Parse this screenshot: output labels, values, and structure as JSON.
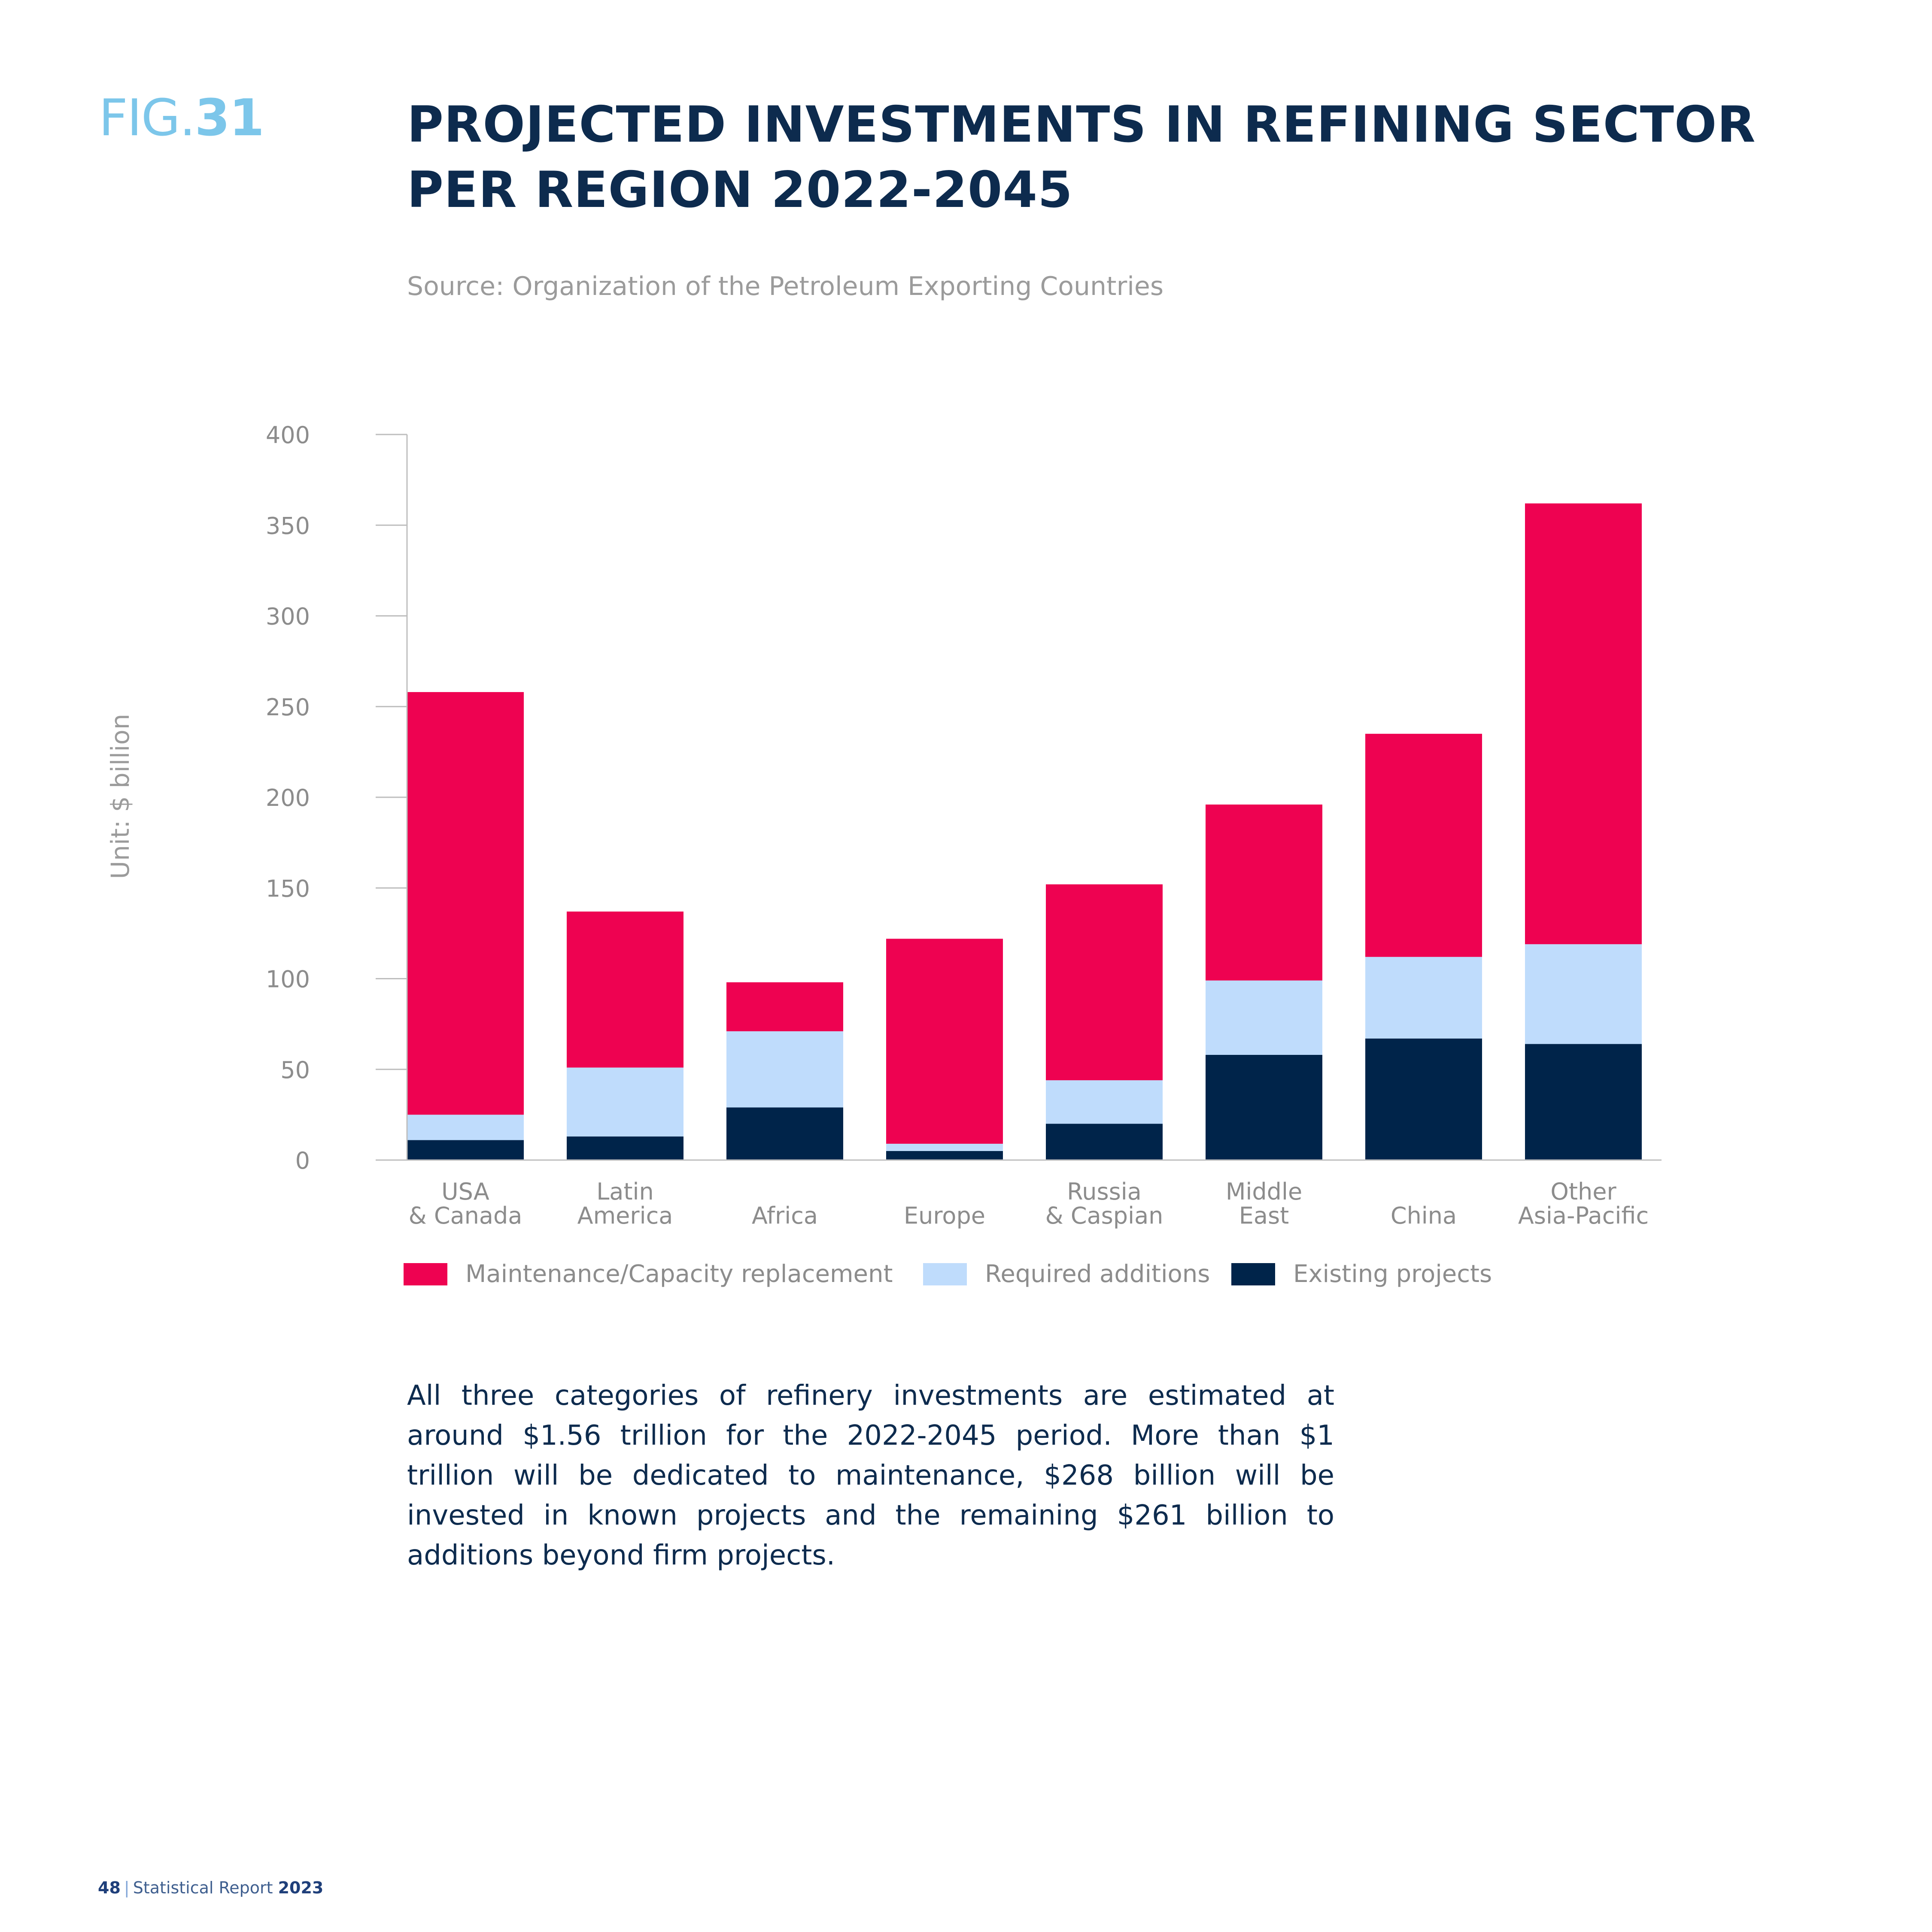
{
  "figure": {
    "prefix": "FIG.",
    "number": "31"
  },
  "title": {
    "line1": "PROJECTED INVESTMENTS IN REFINING SECTOR",
    "line2": "PER REGION 2022-2045"
  },
  "source": "Source: Organization of the Petroleum Exporting Countries",
  "unit_label": "Unit: $ billion",
  "colors": {
    "maintenance": "#ee0251",
    "required": "#bfdcfc",
    "existing": "#00244a",
    "axis": "#bdbdbd",
    "tick_text": "#8c8c8c",
    "title": "#0d2b4e"
  },
  "chart_data": {
    "type": "bar",
    "stacked": true,
    "categories": [
      [
        "USA",
        "& Canada"
      ],
      [
        "Latin",
        "America"
      ],
      [
        "Africa"
      ],
      [
        "Europe"
      ],
      [
        "Russia",
        "& Caspian"
      ],
      [
        "Middle",
        "East"
      ],
      [
        "China"
      ],
      [
        "Other",
        "Asia-Pacific"
      ]
    ],
    "series": [
      {
        "name": "Existing projects",
        "color": "#00244a",
        "values": [
          11,
          13,
          29,
          5,
          20,
          58,
          67,
          64
        ]
      },
      {
        "name": "Required additions",
        "color": "#bfdcfc",
        "values": [
          14,
          38,
          42,
          4,
          24,
          41,
          45,
          55
        ]
      },
      {
        "name": "Maintenance/Capacity replacement",
        "color": "#ee0251",
        "values": [
          233,
          86,
          27,
          113,
          108,
          97,
          123,
          243
        ]
      }
    ],
    "ylim": [
      0,
      400
    ],
    "yticks": [
      0,
      50,
      100,
      150,
      200,
      250,
      300,
      350,
      400
    ],
    "ylabel": "Unit: $ billion",
    "legend_position": "bottom",
    "grid": false
  },
  "legend": [
    {
      "label": "Maintenance/Capacity replacement",
      "color": "#ee0251"
    },
    {
      "label": "Required additions",
      "color": "#bfdcfc"
    },
    {
      "label": "Existing projects",
      "color": "#00244a"
    }
  ],
  "body_text": "All three categories of refinery investments are estimated at around $1.56 trillion for the 2022-2045 period. More than $1 trillion will be dedicated to maintenance, $268 billion will be invested in known projects and the remaining $261 billion to additions beyond firm projects.",
  "footer": {
    "page": "48",
    "separator": "|",
    "report": "Statistical Report",
    "year": "2023"
  }
}
